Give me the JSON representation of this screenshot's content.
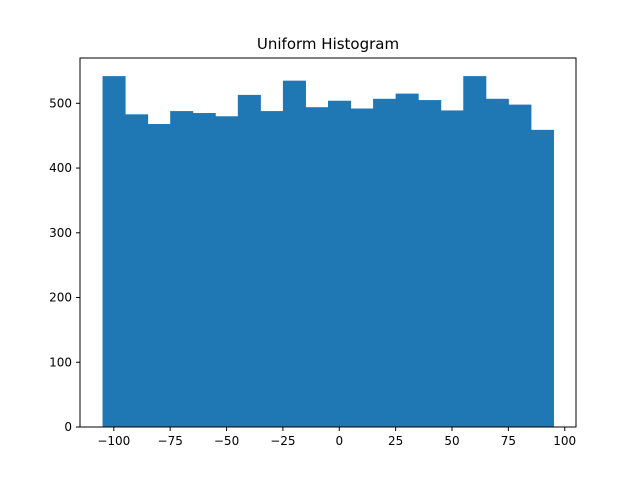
{
  "chart_data": {
    "type": "bar",
    "title": "Uniform Histogram",
    "xlabel": "",
    "ylabel": "",
    "bar_color": "#1f77b4",
    "bins": [
      {
        "x0": -105,
        "x1": -95,
        "count": 542
      },
      {
        "x0": -95,
        "x1": -85,
        "count": 483
      },
      {
        "x0": -85,
        "x1": -75,
        "count": 468
      },
      {
        "x0": -75,
        "x1": -65,
        "count": 488
      },
      {
        "x0": -65,
        "x1": -55,
        "count": 485
      },
      {
        "x0": -55,
        "x1": -45,
        "count": 480
      },
      {
        "x0": -45,
        "x1": -35,
        "count": 513
      },
      {
        "x0": -35,
        "x1": -25,
        "count": 488
      },
      {
        "x0": -25,
        "x1": -15,
        "count": 535
      },
      {
        "x0": -15,
        "x1": -5,
        "count": 494
      },
      {
        "x0": -5,
        "x1": 5,
        "count": 504
      },
      {
        "x0": 5,
        "x1": 15,
        "count": 492
      },
      {
        "x0": 15,
        "x1": 25,
        "count": 507
      },
      {
        "x0": 25,
        "x1": 35,
        "count": 515
      },
      {
        "x0": 35,
        "x1": 45,
        "count": 505
      },
      {
        "x0": 45,
        "x1": 55,
        "count": 489
      },
      {
        "x0": 55,
        "x1": 65,
        "count": 542
      },
      {
        "x0": 65,
        "x1": 75,
        "count": 507
      },
      {
        "x0": 75,
        "x1": 85,
        "count": 498
      },
      {
        "x0": 85,
        "x1": 95,
        "count": 459
      }
    ],
    "xlim": [
      -115,
      105
    ],
    "ylim": [
      0,
      570
    ],
    "xticks": [
      -100,
      -75,
      -50,
      -25,
      0,
      25,
      50,
      75,
      100
    ],
    "xtick_labels": [
      "−100",
      "−75",
      "−50",
      "−25",
      "0",
      "25",
      "50",
      "75",
      "100"
    ],
    "yticks": [
      0,
      100,
      200,
      300,
      400,
      500
    ],
    "ytick_labels": [
      "0",
      "100",
      "200",
      "300",
      "400",
      "500"
    ],
    "grid": false,
    "legend": "none"
  }
}
